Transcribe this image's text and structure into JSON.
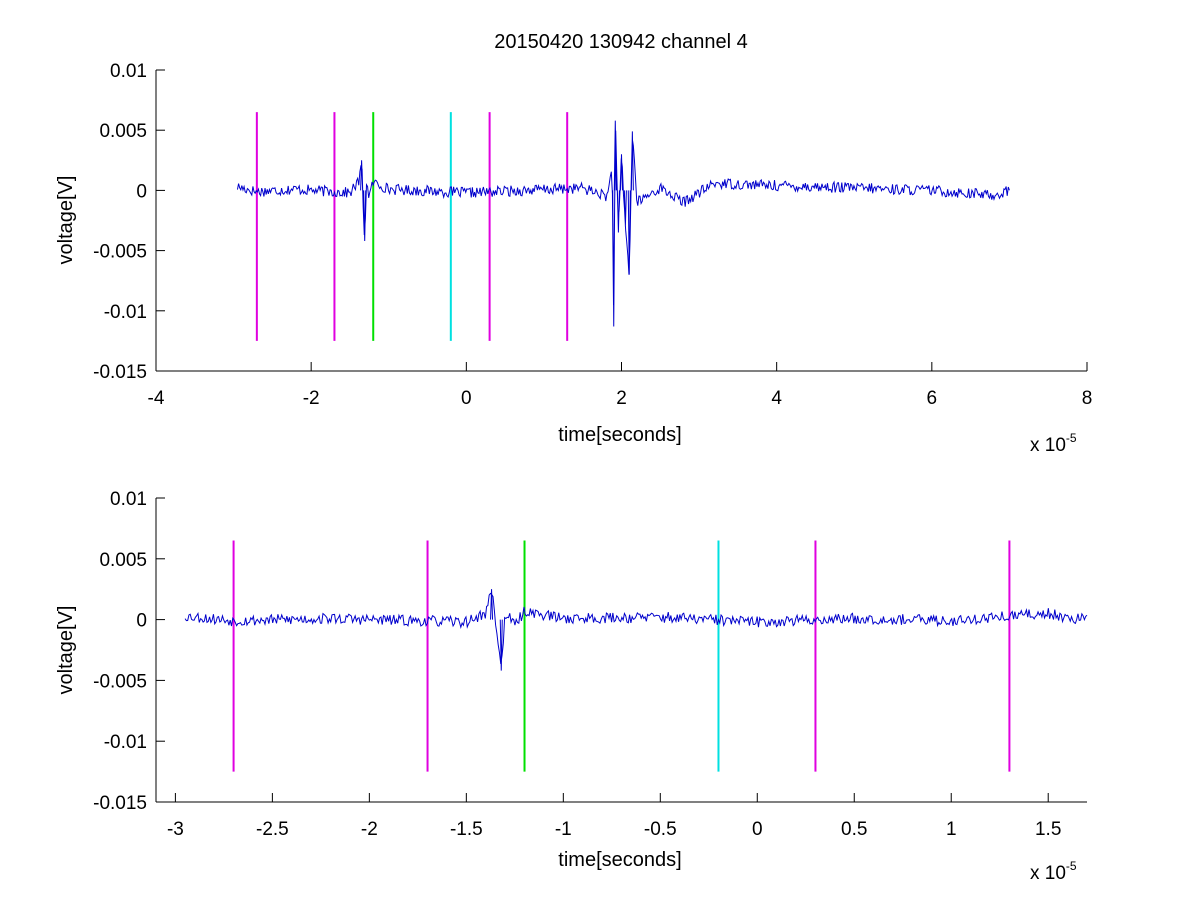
{
  "chart_data": [
    {
      "type": "line",
      "title": "20150420 130942 channel 4",
      "xlabel": "time[seconds]",
      "ylabel": "voltage[V]",
      "x_scale_label": "x 10",
      "x_scale_exponent": "-5",
      "xlim": [
        -4e-05,
        8e-05
      ],
      "ylim": [
        -0.015,
        0.01
      ],
      "x_ticks": [
        -4e-05,
        -2e-05,
        0,
        2e-05,
        4e-05,
        6e-05,
        8e-05
      ],
      "x_tick_labels": [
        "-4",
        "-2",
        "0",
        "2",
        "4",
        "6",
        "8"
      ],
      "y_ticks": [
        0.01,
        0.005,
        0,
        -0.005,
        -0.01,
        -0.015
      ],
      "y_tick_labels": [
        "0.01",
        "0.005",
        "0",
        "-0.005",
        "-0.01",
        "-0.015"
      ],
      "grid": false,
      "signal": {
        "color": "#0000cc",
        "x_range": [
          -2.95e-05,
          7e-05
        ],
        "keypoints": [
          [
            -2.95e-05,
            0.0003
          ],
          [
            -2.7e-05,
            -0.0001
          ],
          [
            -2.2e-05,
            0.0001
          ],
          [
            -1.5e-05,
            -0.0002
          ],
          [
            -1.38e-05,
            0.0008
          ],
          [
            -1.35e-05,
            0.0025
          ],
          [
            -1.33e-05,
            -0.0012
          ],
          [
            -1.31e-05,
            -0.0042
          ],
          [
            -1.29e-05,
            0.0006
          ],
          [
            -1.25e-05,
            -0.0005
          ],
          [
            -1.2e-05,
            0.0007
          ],
          [
            -1e-05,
            0.0001
          ],
          [
            0,
            -0.0002
          ],
          [
            1.5e-05,
            0.0002
          ],
          [
            1.82e-05,
            -0.0005
          ],
          [
            1.88e-05,
            0.002
          ],
          [
            1.9e-05,
            -0.0113
          ],
          [
            1.92e-05,
            0.0058
          ],
          [
            1.96e-05,
            -0.0035
          ],
          [
            2e-05,
            0.003
          ],
          [
            2.05e-05,
            -0.003
          ],
          [
            2.1e-05,
            -0.007
          ],
          [
            2.14e-05,
            0.0049
          ],
          [
            2.2e-05,
            -0.001
          ],
          [
            2.5e-05,
            0.0002
          ],
          [
            2.8e-05,
            -0.001
          ],
          [
            3.2e-05,
            0.0006
          ],
          [
            4e-05,
            0.0004
          ],
          [
            5e-05,
            0.0002
          ],
          [
            6e-05,
            0.0
          ],
          [
            6.8e-05,
            -0.0004
          ],
          [
            7e-05,
            0.0
          ]
        ]
      },
      "markers": [
        {
          "x": -2.7e-05,
          "color": "#e000e0"
        },
        {
          "x": -1.7e-05,
          "color": "#e000e0"
        },
        {
          "x": -1.2e-05,
          "color": "#00e000"
        },
        {
          "x": -2e-06,
          "color": "#00e0e0"
        },
        {
          "x": 3e-06,
          "color": "#e000e0"
        },
        {
          "x": 1.3e-05,
          "color": "#e000e0"
        }
      ],
      "marker_y_range": [
        -0.0125,
        0.0065
      ]
    },
    {
      "type": "line",
      "title": "",
      "xlabel": "time[seconds]",
      "ylabel": "voltage[V]",
      "x_scale_label": "x 10",
      "x_scale_exponent": "-5",
      "xlim": [
        -3.1e-05,
        1.7e-05
      ],
      "ylim": [
        -0.015,
        0.01
      ],
      "x_ticks": [
        -3e-05,
        -2.5e-05,
        -2e-05,
        -1.5e-05,
        -1e-05,
        -5e-06,
        0,
        5e-06,
        1e-05,
        1.5e-05
      ],
      "x_tick_labels": [
        "-3",
        "-2.5",
        "-2",
        "-1.5",
        "-1",
        "-0.5",
        "0",
        "0.5",
        "1",
        "1.5"
      ],
      "y_ticks": [
        0.01,
        0.005,
        0,
        -0.005,
        -0.01,
        -0.015
      ],
      "y_tick_labels": [
        "0.01",
        "0.005",
        "0",
        "-0.005",
        "-0.01",
        "-0.015"
      ],
      "grid": false,
      "signal": {
        "color": "#0000cc",
        "x_range": [
          -2.95e-05,
          1.7e-05
        ],
        "keypoints": [
          [
            -2.95e-05,
            0.0003
          ],
          [
            -2.7e-05,
            -0.0001
          ],
          [
            -2.2e-05,
            0.0001
          ],
          [
            -2e-05,
            0.0
          ],
          [
            -1.5e-05,
            -0.0002
          ],
          [
            -1.4e-05,
            0.0005
          ],
          [
            -1.37e-05,
            0.0025
          ],
          [
            -1.34e-05,
            -0.0012
          ],
          [
            -1.32e-05,
            -0.0042
          ],
          [
            -1.3e-05,
            0.0006
          ],
          [
            -1.25e-05,
            -0.0005
          ],
          [
            -1.2e-05,
            0.0007
          ],
          [
            -1e-05,
            0.0001
          ],
          [
            -5e-06,
            0.0002
          ],
          [
            0,
            -0.0002
          ],
          [
            5e-06,
            0.0001
          ],
          [
            1e-05,
            -0.0001
          ],
          [
            1.4e-05,
            0.0004
          ],
          [
            1.5e-05,
            0.0005
          ],
          [
            1.6e-05,
            0.0002
          ],
          [
            1.7e-05,
            0.0
          ]
        ]
      },
      "markers": [
        {
          "x": -2.7e-05,
          "color": "#e000e0"
        },
        {
          "x": -1.7e-05,
          "color": "#e000e0"
        },
        {
          "x": -1.2e-05,
          "color": "#00e000"
        },
        {
          "x": -2e-06,
          "color": "#00e0e0"
        },
        {
          "x": 3e-06,
          "color": "#e000e0"
        },
        {
          "x": 1.3e-05,
          "color": "#e000e0"
        }
      ],
      "marker_y_range": [
        -0.0125,
        0.0065
      ]
    }
  ]
}
